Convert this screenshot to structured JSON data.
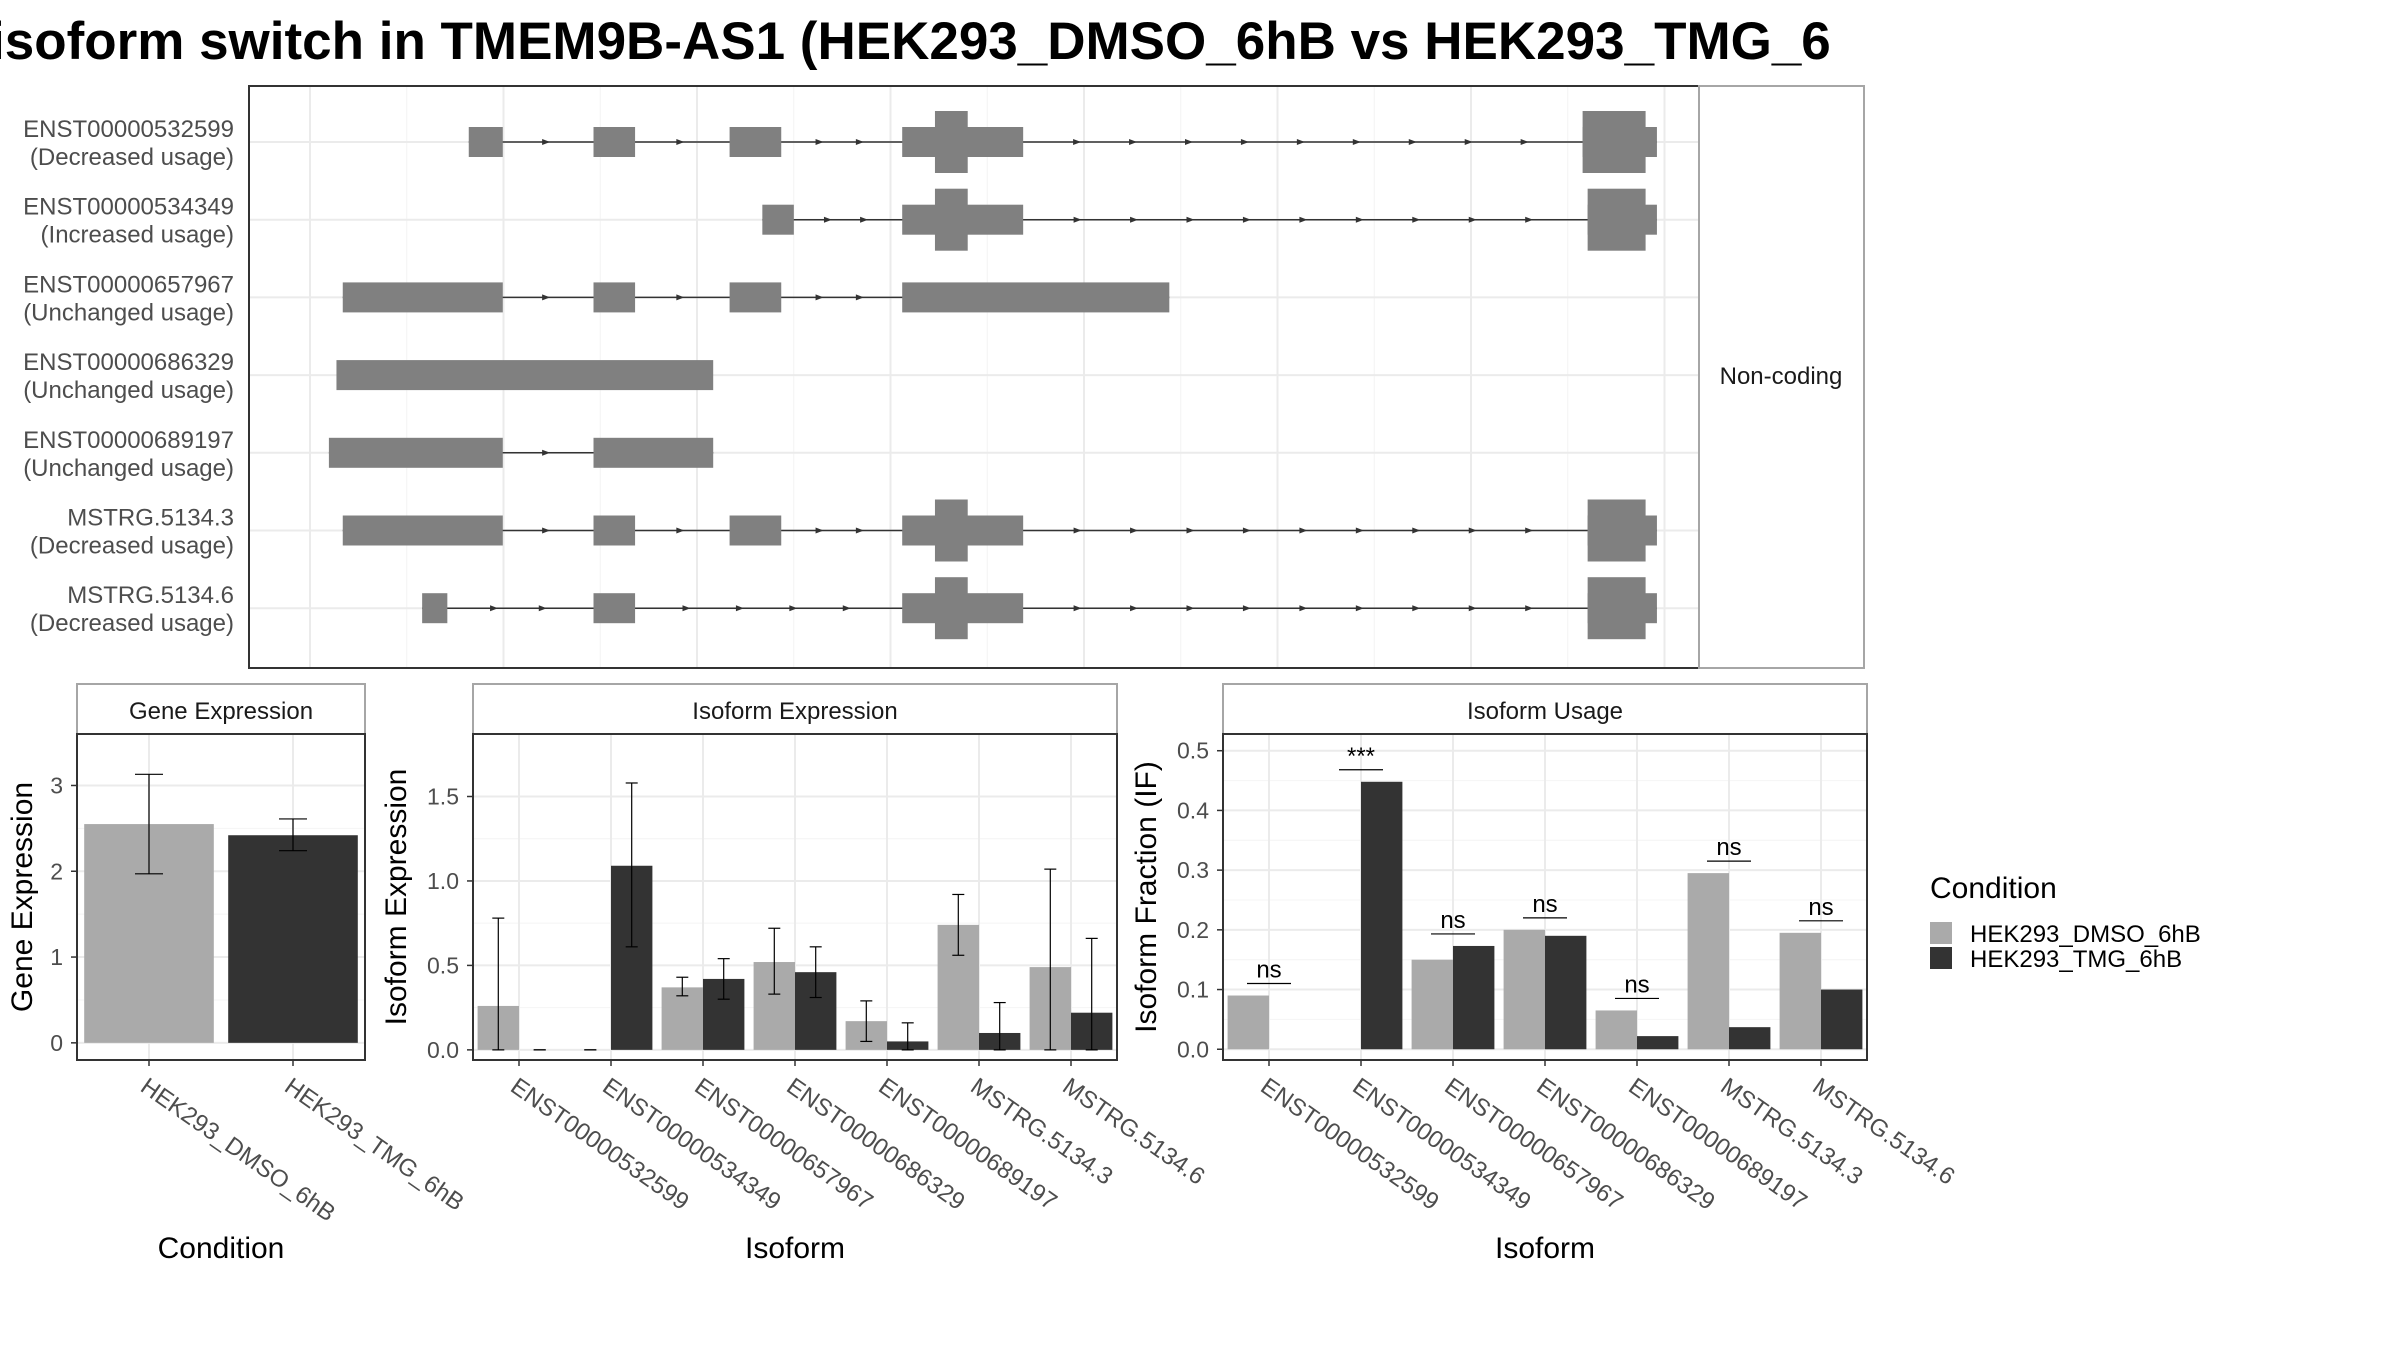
{
  "title": "isoform switch in TMEM9B-AS1 (HEK293_DMSO_6hB vs HEK293_TMG_6",
  "colors": {
    "dmso": "#aaaaaa",
    "tmg": "#333333",
    "exon": "#808080",
    "panel_border": "#333333",
    "strip_border": "#a6a6a6",
    "grid": "#ebebeb"
  },
  "chart_data": [
    {
      "type": "transcript-structure",
      "facet_label": "Non-coding",
      "x_range": [
        0,
        1
      ],
      "x_grid_count": 8,
      "transcripts": [
        {
          "name": "ENST00000532599",
          "usage": "(Decreased usage)",
          "exons": [
            [
              0.126,
              0.153
            ],
            [
              0.225,
              0.258
            ],
            [
              0.333,
              0.374
            ],
            [
              0.47,
              0.566
            ],
            [
              1.01,
              1.069
            ]
          ],
          "tall": [
            [
              0.496,
              0.522
            ],
            [
              1.01,
              1.06
            ]
          ]
        },
        {
          "name": "ENST00000534349",
          "usage": "(Increased usage)",
          "exons": [
            [
              0.359,
              0.384
            ],
            [
              0.47,
              0.566
            ],
            [
              1.014,
              1.069
            ]
          ],
          "tall": [
            [
              0.496,
              0.522
            ],
            [
              1.014,
              1.06
            ]
          ]
        },
        {
          "name": "ENST00000657967",
          "usage": "(Unchanged usage)",
          "exons": [
            [
              0.026,
              0.153
            ],
            [
              0.225,
              0.258
            ],
            [
              0.333,
              0.374
            ],
            [
              0.47,
              0.682
            ]
          ],
          "tall": []
        },
        {
          "name": "ENST00000686329",
          "usage": "(Unchanged usage)",
          "exons": [
            [
              0.021,
              0.32
            ]
          ],
          "tall": []
        },
        {
          "name": "ENST00000689197",
          "usage": "(Unchanged usage)",
          "exons": [
            [
              0.015,
              0.153
            ],
            [
              0.225,
              0.32
            ]
          ],
          "tall": []
        },
        {
          "name": "MSTRG.5134.3",
          "usage": "(Decreased usage)",
          "exons": [
            [
              0.026,
              0.153
            ],
            [
              0.225,
              0.258
            ],
            [
              0.333,
              0.374
            ],
            [
              0.47,
              0.566
            ],
            [
              1.014,
              1.069
            ]
          ],
          "tall": [
            [
              0.496,
              0.522
            ],
            [
              1.014,
              1.06
            ]
          ]
        },
        {
          "name": "MSTRG.5134.6",
          "usage": "(Decreased usage)",
          "exons": [
            [
              0.089,
              0.109
            ],
            [
              0.225,
              0.258
            ],
            [
              0.47,
              0.566
            ],
            [
              1.014,
              1.069
            ]
          ],
          "tall": [
            [
              0.496,
              0.522
            ],
            [
              1.014,
              1.06
            ]
          ]
        }
      ]
    },
    {
      "type": "bar",
      "strip": "Gene Expression",
      "xlabel": "Condition",
      "ylabel": "Gene Expression",
      "ylim": [
        -0.2,
        3.6
      ],
      "yticks": [
        0,
        1,
        2,
        3
      ],
      "categories": [
        "HEK293_DMSO_6hB",
        "HEK293_TMG_6hB"
      ],
      "values": [
        2.55,
        2.42
      ],
      "err_low": [
        1.97,
        2.24
      ],
      "err_high": [
        3.13,
        2.61
      ]
    },
    {
      "type": "bar",
      "strip": "Isoform Expression",
      "xlabel": "Isoform",
      "ylabel": "Isoform Expression",
      "ylim": [
        -0.06,
        1.87
      ],
      "yticks": [
        0.0,
        0.5,
        1.0,
        1.5
      ],
      "ytick_labels": [
        "0.0",
        "0.5",
        "1.0",
        "1.5"
      ],
      "categories": [
        "ENST00000532599",
        "ENST00000534349",
        "ENST00000657967",
        "ENST00000686329",
        "ENST00000689197",
        "MSTRG.5134.3",
        "MSTRG.5134.6"
      ],
      "series": [
        {
          "name": "HEK293_DMSO_6hB",
          "values": [
            0.26,
            0.0,
            0.37,
            0.52,
            0.17,
            0.74,
            0.49
          ],
          "err_low": [
            0.0,
            0.0,
            0.32,
            0.33,
            0.05,
            0.56,
            0.0
          ],
          "err_high": [
            0.78,
            0.0,
            0.43,
            0.72,
            0.29,
            0.92,
            1.07
          ]
        },
        {
          "name": "HEK293_TMG_6hB",
          "values": [
            0.0,
            1.09,
            0.42,
            0.46,
            0.05,
            0.1,
            0.22
          ],
          "err_low": [
            0.0,
            0.61,
            0.3,
            0.31,
            0.0,
            0.0,
            0.0
          ],
          "err_high": [
            0.0,
            1.58,
            0.54,
            0.61,
            0.16,
            0.28,
            0.66
          ]
        }
      ]
    },
    {
      "type": "bar",
      "strip": "Isoform Usage",
      "xlabel": "Isoform",
      "ylabel": "Isoform Fraction (IF)",
      "ylim": [
        -0.018,
        0.528
      ],
      "yticks": [
        0.0,
        0.1,
        0.2,
        0.3,
        0.4,
        0.5
      ],
      "ytick_labels": [
        "0.0",
        "0.1",
        "0.2",
        "0.3",
        "0.4",
        "0.5"
      ],
      "categories": [
        "ENST00000532599",
        "ENST00000534349",
        "ENST00000657967",
        "ENST00000686329",
        "ENST00000689197",
        "MSTRG.5134.3",
        "MSTRG.5134.6"
      ],
      "series": [
        {
          "name": "HEK293_DMSO_6hB",
          "values": [
            0.09,
            0.0,
            0.15,
            0.2,
            0.065,
            0.295,
            0.195
          ]
        },
        {
          "name": "HEK293_TMG_6hB",
          "values": [
            0.0,
            0.448,
            0.173,
            0.19,
            0.022,
            0.037,
            0.1
          ]
        }
      ],
      "significance": [
        "ns",
        "***",
        "ns",
        "ns",
        "ns",
        "ns",
        "ns"
      ]
    }
  ],
  "legend": {
    "title": "Condition",
    "items": [
      "HEK293_DMSO_6hB",
      "HEK293_TMG_6hB"
    ]
  }
}
